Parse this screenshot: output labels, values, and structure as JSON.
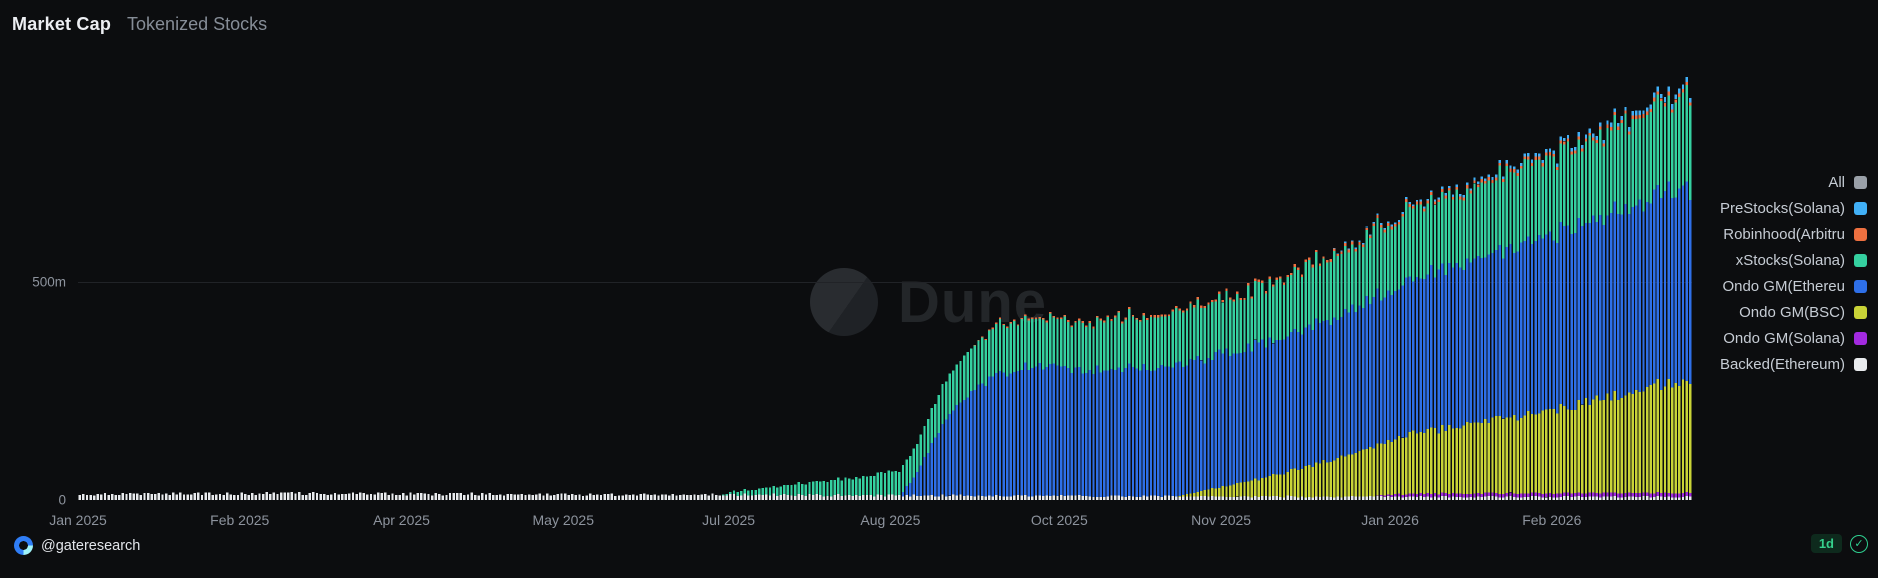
{
  "header": {
    "title": "Market Cap",
    "subtitle": "Tokenized Stocks"
  },
  "watermark": {
    "text": "Dune",
    "logo": "dune-circle-logo"
  },
  "footer": {
    "account": "@gateresearch",
    "account_icon": "gate-logo-icon",
    "interval_label": "1d",
    "status_icon": "check-circle-icon"
  },
  "colors": {
    "background": "#0c0d0f",
    "grid": "#212327",
    "axis_text": "#8d939d",
    "legend_text": "#c6ccd4",
    "accent_green": "#2ecf8f"
  },
  "legend": [
    {
      "label": "All",
      "color": "#9aa0a8"
    },
    {
      "label": "PreStocks(Solana)",
      "color": "#41b0f7"
    },
    {
      "label": "Robinhood(Arbitru",
      "color": "#ee7040"
    },
    {
      "label": "xStocks(Solana)",
      "color": "#35d0a0"
    },
    {
      "label": "Ondo GM(Ethereu",
      "color": "#2e6fe8"
    },
    {
      "label": "Ondo GM(BSC)",
      "color": "#c9d337"
    },
    {
      "label": "Ondo GM(Solana)",
      "color": "#a32ae0"
    },
    {
      "label": "Backed(Ethereum)",
      "color": "#e9ebee"
    }
  ],
  "chart_data": {
    "type": "bar",
    "stacked": true,
    "title": "Market Cap - Tokenized Stocks",
    "unit": "USD millions",
    "legend_position": "right",
    "grid": "horizontal-500m-only",
    "ylim": [
      0,
      1050
    ],
    "y_axis": {
      "ticks": [
        {
          "label": "0",
          "value": 0
        },
        {
          "label": "500m",
          "value": 500
        }
      ]
    },
    "x_axis": {
      "start": "Jan 2025",
      "end": "Mar 2026",
      "total_days": 449,
      "tick_labels": [
        "Jan 2025",
        "Feb 2025",
        "Apr 2025",
        "May 2025",
        "Jul 2025",
        "Aug 2025",
        "Oct 2025",
        "Nov 2025",
        "Jan 2026",
        "Feb 2026"
      ],
      "tick_days": [
        0,
        45,
        90,
        135,
        181,
        226,
        273,
        318,
        365,
        410
      ]
    },
    "series_note": "values in millions USD, piecewise-linear breakpoints [day_offset, value]; stack order bottom-to-top",
    "series": [
      {
        "name": "Backed(Ethereum)",
        "color": "#e9ebee",
        "jitter": 0.5,
        "breakpoints": [
          [
            0,
            13
          ],
          [
            60,
            15
          ],
          [
            120,
            13
          ],
          [
            180,
            12
          ],
          [
            250,
            10
          ],
          [
            320,
            8
          ],
          [
            449,
            7
          ]
        ]
      },
      {
        "name": "Ondo GM(Solana)",
        "color": "#a32ae0",
        "jitter": 0.15,
        "breakpoints": [
          [
            0,
            0
          ],
          [
            360,
            0
          ],
          [
            366,
            6
          ],
          [
            380,
            8
          ],
          [
            449,
            9
          ]
        ]
      },
      {
        "name": "Ondo GM(BSC)",
        "color": "#c9d337",
        "jitter": 0.12,
        "breakpoints": [
          [
            0,
            0
          ],
          [
            305,
            0
          ],
          [
            312,
            12
          ],
          [
            322,
            30
          ],
          [
            332,
            48
          ],
          [
            342,
            70
          ],
          [
            352,
            95
          ],
          [
            362,
            120
          ],
          [
            372,
            140
          ],
          [
            382,
            152
          ],
          [
            392,
            165
          ],
          [
            402,
            180
          ],
          [
            412,
            196
          ],
          [
            422,
            212
          ],
          [
            432,
            232
          ],
          [
            442,
            252
          ],
          [
            449,
            262
          ]
        ]
      },
      {
        "name": "Ondo GM(Ethereu",
        "color": "#2e6fe8",
        "jitter": 0.09,
        "breakpoints": [
          [
            0,
            0
          ],
          [
            228,
            0
          ],
          [
            232,
            40
          ],
          [
            236,
            100
          ],
          [
            240,
            160
          ],
          [
            245,
            215
          ],
          [
            250,
            255
          ],
          [
            255,
            280
          ],
          [
            260,
            292
          ],
          [
            268,
            298
          ],
          [
            278,
            292
          ],
          [
            288,
            296
          ],
          [
            298,
            298
          ],
          [
            308,
            300
          ],
          [
            318,
            305
          ],
          [
            328,
            310
          ],
          [
            338,
            318
          ],
          [
            348,
            328
          ],
          [
            358,
            338
          ],
          [
            368,
            350
          ],
          [
            378,
            362
          ],
          [
            388,
            372
          ],
          [
            398,
            384
          ],
          [
            408,
            398
          ],
          [
            418,
            410
          ],
          [
            428,
            422
          ],
          [
            438,
            434
          ],
          [
            449,
            442
          ]
        ]
      },
      {
        "name": "xStocks(Solana)",
        "color": "#35d0a0",
        "jitter": 0.16,
        "breakpoints": [
          [
            0,
            0
          ],
          [
            178,
            0
          ],
          [
            182,
            8
          ],
          [
            190,
            15
          ],
          [
            198,
            24
          ],
          [
            206,
            32
          ],
          [
            214,
            40
          ],
          [
            222,
            48
          ],
          [
            228,
            55
          ],
          [
            234,
            70
          ],
          [
            240,
            85
          ],
          [
            246,
            98
          ],
          [
            252,
            108
          ],
          [
            258,
            112
          ],
          [
            266,
            112
          ],
          [
            274,
            106
          ],
          [
            282,
            112
          ],
          [
            292,
            118
          ],
          [
            302,
            120
          ],
          [
            312,
            122
          ],
          [
            322,
            128
          ],
          [
            332,
            133
          ],
          [
            342,
            140
          ],
          [
            352,
            146
          ],
          [
            362,
            155
          ],
          [
            372,
            165
          ],
          [
            382,
            168
          ],
          [
            392,
            170
          ],
          [
            402,
            175
          ],
          [
            412,
            180
          ],
          [
            422,
            188
          ],
          [
            432,
            198
          ],
          [
            442,
            210
          ],
          [
            449,
            218
          ]
        ]
      },
      {
        "name": "Robinhood(Arbitru",
        "color": "#ee7040",
        "jitter": 0.3,
        "breakpoints": [
          [
            0,
            0
          ],
          [
            248,
            0
          ],
          [
            252,
            3
          ],
          [
            280,
            4
          ],
          [
            320,
            5
          ],
          [
            360,
            6
          ],
          [
            400,
            7
          ],
          [
            449,
            8
          ]
        ]
      },
      {
        "name": "PreStocks(Solana)",
        "color": "#41b0f7",
        "jitter": 0.3,
        "breakpoints": [
          [
            0,
            0
          ],
          [
            348,
            0
          ],
          [
            352,
            3
          ],
          [
            380,
            5
          ],
          [
            410,
            8
          ],
          [
            449,
            12
          ]
        ]
      }
    ]
  }
}
